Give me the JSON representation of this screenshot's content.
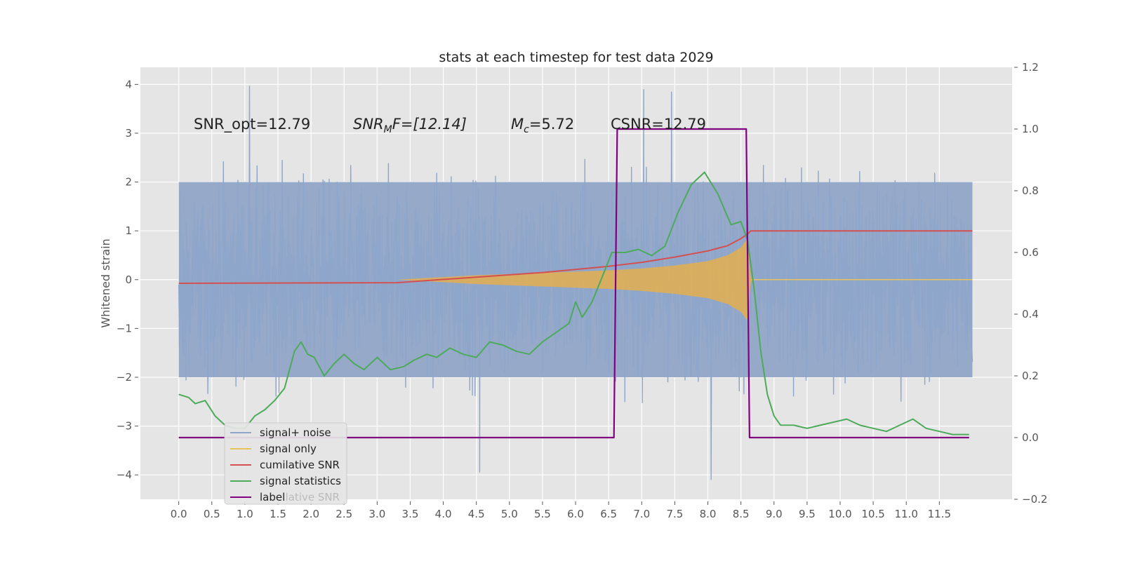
{
  "chart_data": {
    "type": "line",
    "title": "stats at each timestep for test data 2029",
    "xlabel": "",
    "ylabel": "Whitened strain",
    "xlim": [
      -0.58,
      12.6
    ],
    "ylim": [
      -4.5,
      4.35
    ],
    "y2lim": [
      -0.2,
      1.2
    ],
    "x_ticks": [
      "0.0",
      "0.5",
      "1.0",
      "1.5",
      "2.0",
      "2.5",
      "3.0",
      "3.5",
      "4.0",
      "4.5",
      "5.0",
      "5.5",
      "6.0",
      "6.5",
      "7.0",
      "7.5",
      "8.0",
      "8.5",
      "9.0",
      "9.5",
      "10.0",
      "10.5",
      "11.0",
      "11.5"
    ],
    "y_ticks": [
      "4",
      "3",
      "2",
      "1",
      "0",
      "−1",
      "−2",
      "−3",
      "−4"
    ],
    "y2_ticks": [
      "1.2",
      "1.0",
      "0.8",
      "0.6",
      "0.4",
      "0.2",
      "0.0",
      "−0.2"
    ],
    "annotations": {
      "snr_opt": "SNR_opt=12.79",
      "snr_mf_name": "SNR",
      "snr_mf_sub": "M",
      "snr_mf_rest": "F=[12.14]",
      "mc_name": "M",
      "mc_sub": "c",
      "mc_rest": "=5.72",
      "csnr": "CSNR=12.79"
    },
    "legend": {
      "location": "lower-left",
      "entries": [
        {
          "label": "signal+ noise",
          "color": "#8fa6cb"
        },
        {
          "label": "signal only",
          "color": "#e8c25a"
        },
        {
          "label": "cumilative SNR",
          "color": "#d45050"
        },
        {
          "label": "signal statistics",
          "color": "#4caa5a"
        },
        {
          "label": "label",
          "color": "#800080"
        }
      ],
      "hidden_behind_label": "cumilative SNR"
    },
    "series": [
      {
        "name": "signal+ noise",
        "axis": "left",
        "x_range": [
          0.0,
          12.0
        ],
        "band_lower": -2.0,
        "band_upper": 2.0,
        "typical_min": -2.6,
        "typical_max": 2.6,
        "extremes": [
          {
            "x": 1.07,
            "y": 3.97
          },
          {
            "x": 7.03,
            "y": 3.9
          },
          {
            "x": 8.05,
            "y": -4.1
          },
          {
            "x": 4.55,
            "y": -3.95
          },
          {
            "x": 7.45,
            "y": 3.85
          }
        ]
      },
      {
        "name": "signal only",
        "axis": "left",
        "envelope": {
          "x": [
            0.0,
            3.3,
            4.5,
            5.5,
            6.5,
            7.0,
            7.5,
            8.0,
            8.3,
            8.5,
            8.6,
            8.65,
            12.0
          ],
          "y": [
            0.0,
            0.0,
            0.09,
            0.14,
            0.19,
            0.23,
            0.29,
            0.38,
            0.5,
            0.66,
            0.85,
            0.0,
            0.0
          ]
        }
      },
      {
        "name": "cumilative SNR",
        "axis": "right",
        "x": [
          0.0,
          3.3,
          4.5,
          5.5,
          6.5,
          7.0,
          7.5,
          8.0,
          8.3,
          8.5,
          8.6,
          8.65,
          12.0
        ],
        "values": [
          0.5,
          0.502,
          0.52,
          0.535,
          0.555,
          0.568,
          0.585,
          0.605,
          0.622,
          0.645,
          0.66,
          0.67,
          0.67
        ]
      },
      {
        "name": "signal statistics",
        "axis": "right",
        "x": [
          0.0,
          0.15,
          0.25,
          0.4,
          0.55,
          0.7,
          0.85,
          1.0,
          1.15,
          1.3,
          1.45,
          1.6,
          1.75,
          1.85,
          1.95,
          2.05,
          2.2,
          2.35,
          2.5,
          2.65,
          2.8,
          3.0,
          3.2,
          3.4,
          3.55,
          3.75,
          3.9,
          4.1,
          4.3,
          4.5,
          4.7,
          4.9,
          5.1,
          5.3,
          5.5,
          5.7,
          5.9,
          6.0,
          6.1,
          6.25,
          6.4,
          6.55,
          6.75,
          6.95,
          7.15,
          7.35,
          7.55,
          7.75,
          7.95,
          8.15,
          8.35,
          8.5,
          8.6,
          8.7,
          8.8,
          8.9,
          9.0,
          9.1,
          9.3,
          9.5,
          9.7,
          9.9,
          10.1,
          10.3,
          10.5,
          10.7,
          10.9,
          11.1,
          11.3,
          11.5,
          11.7,
          11.95
        ],
        "values": [
          0.14,
          0.13,
          0.11,
          0.12,
          0.07,
          0.04,
          0.03,
          0.03,
          0.07,
          0.09,
          0.12,
          0.16,
          0.28,
          0.31,
          0.27,
          0.26,
          0.2,
          0.24,
          0.27,
          0.24,
          0.22,
          0.26,
          0.22,
          0.23,
          0.25,
          0.27,
          0.26,
          0.29,
          0.27,
          0.26,
          0.31,
          0.3,
          0.28,
          0.27,
          0.31,
          0.34,
          0.37,
          0.44,
          0.39,
          0.44,
          0.52,
          0.6,
          0.6,
          0.61,
          0.59,
          0.62,
          0.73,
          0.82,
          0.86,
          0.79,
          0.69,
          0.7,
          0.64,
          0.48,
          0.28,
          0.14,
          0.07,
          0.04,
          0.04,
          0.03,
          0.04,
          0.05,
          0.06,
          0.04,
          0.03,
          0.02,
          0.04,
          0.06,
          0.03,
          0.02,
          0.01,
          0.01
        ]
      },
      {
        "name": "label",
        "axis": "right",
        "x": [
          0.0,
          6.58,
          6.63,
          8.58,
          8.63,
          11.95
        ],
        "values": [
          0.0,
          0.0,
          1.0,
          1.0,
          0.0,
          0.0
        ]
      }
    ]
  }
}
